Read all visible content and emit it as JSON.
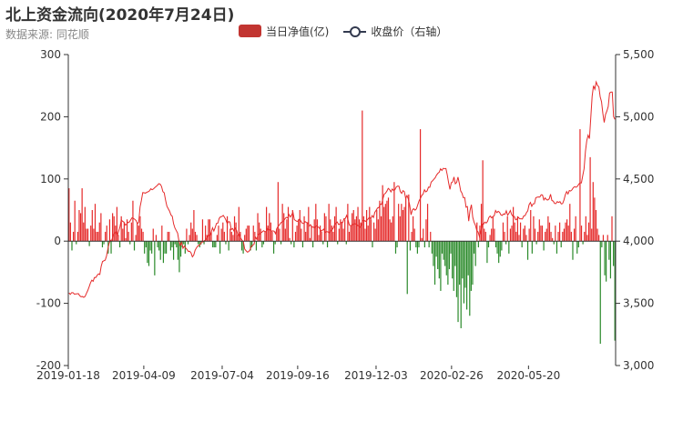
{
  "chart_data": {
    "type": "bar",
    "title": "北上资金流向(2020年7月24日)",
    "subtitle": "数据来源: 同花顺",
    "legend": {
      "position": "top-center",
      "entries": [
        "当日净值(亿)",
        "收盘价（右轴）"
      ]
    },
    "colors": {
      "positive": "#e52a2a",
      "negative": "#2a8a2a",
      "line": "#e52a2a",
      "legend_bar": "#c23531",
      "legend_line": "#333a4f",
      "axis": "#333333"
    },
    "x_tick_labels": [
      "2019-01-18",
      "2019-04-09",
      "2019-07-04",
      "2019-09-16",
      "2019-12-03",
      "2020-02-26",
      "2020-05-20"
    ],
    "x_tick_index": [
      0,
      52,
      106,
      158,
      212,
      264,
      317
    ],
    "y_left": {
      "ticks": [
        300,
        200,
        100,
        0,
        -100,
        -200
      ],
      "ylim": [
        -200,
        300
      ]
    },
    "y_right": {
      "ticks": [
        "5,500",
        "5,000",
        "4,500",
        "4,000",
        "3,500",
        "3,000"
      ],
      "ylim": [
        3000,
        5500
      ]
    },
    "grid": false,
    "series": [
      {
        "name": "当日净值(亿)",
        "type": "bar",
        "axis": "left",
        "values": [
          85,
          30,
          -15,
          15,
          65,
          -5,
          15,
          50,
          45,
          85,
          30,
          55,
          20,
          20,
          -8,
          25,
          50,
          20,
          60,
          15,
          15,
          30,
          45,
          -10,
          -5,
          15,
          25,
          -20,
          35,
          -20,
          45,
          40,
          25,
          55,
          10,
          -10,
          40,
          20,
          30,
          5,
          35,
          15,
          -5,
          30,
          65,
          -15,
          10,
          30,
          25,
          40,
          20,
          15,
          -20,
          -10,
          -35,
          -40,
          -15,
          -20,
          20,
          -55,
          10,
          -10,
          -15,
          -30,
          25,
          -35,
          -20,
          -20,
          15,
          15,
          -15,
          -10,
          -30,
          -5,
          -10,
          -30,
          -50,
          -25,
          -10,
          -5,
          -20,
          20,
          -5,
          10,
          30,
          20,
          50,
          15,
          10,
          -5,
          -10,
          -5,
          35,
          -5,
          25,
          10,
          35,
          35,
          15,
          -10,
          -10,
          -10,
          10,
          25,
          -20,
          20,
          30,
          15,
          -5,
          40,
          -15,
          20,
          15,
          10,
          40,
          30,
          10,
          55,
          15,
          -15,
          -20,
          10,
          20,
          25,
          25,
          -15,
          -10,
          25,
          15,
          -15,
          45,
          30,
          20,
          -10,
          -5,
          15,
          55,
          25,
          45,
          30,
          15,
          -20,
          -5,
          20,
          95,
          20,
          -5,
          60,
          45,
          20,
          35,
          55,
          5,
          -5,
          50,
          -10,
          15,
          25,
          35,
          50,
          20,
          -10,
          40,
          15,
          30,
          55,
          5,
          25,
          -10,
          35,
          60,
          35,
          10,
          25,
          15,
          -5,
          45,
          40,
          -10,
          60,
          35,
          25,
          15,
          40,
          55,
          -5,
          20,
          35,
          30,
          20,
          35,
          -5,
          60,
          15,
          25,
          45,
          50,
          35,
          40,
          55,
          35,
          30,
          210,
          40,
          20,
          50,
          25,
          55,
          35,
          -10,
          30,
          20,
          50,
          35,
          65,
          40,
          90,
          55,
          60,
          65,
          70,
          35,
          30,
          40,
          95,
          -20,
          -10,
          60,
          40,
          60,
          50,
          55,
          70,
          -85,
          75,
          -15,
          15,
          40,
          20,
          -10,
          -20,
          -10,
          180,
          5,
          20,
          -10,
          35,
          60,
          -10,
          15,
          -20,
          -40,
          -70,
          -25,
          -45,
          -60,
          -80,
          -20,
          -30,
          -40,
          -55,
          -70,
          -45,
          -20,
          -60,
          -80,
          -40,
          -90,
          -130,
          -70,
          -140,
          -60,
          -100,
          -75,
          -110,
          -55,
          -120,
          -80,
          -70,
          -20,
          -40,
          30,
          -10,
          25,
          60,
          130,
          20,
          15,
          -35,
          -10,
          10,
          20,
          40,
          20,
          -10,
          -20,
          -35,
          -25,
          -15,
          30,
          15,
          -5,
          40,
          -20,
          20,
          25,
          55,
          30,
          15,
          40,
          10,
          30,
          -10,
          20,
          25,
          10,
          -30,
          20,
          50,
          -20,
          40,
          20,
          -5,
          15,
          35,
          25,
          25,
          -15,
          15,
          20,
          40,
          30,
          15,
          5,
          -5,
          25,
          -20,
          15,
          30,
          -10,
          15,
          20,
          30,
          35,
          25,
          60,
          15,
          -30,
          20,
          40,
          -20,
          -10,
          180,
          25,
          -5,
          15,
          40,
          10,
          30,
          135,
          20,
          95,
          70,
          50,
          20,
          10,
          -165,
          -10,
          10,
          -55,
          -65,
          10,
          -30,
          -60,
          40,
          -40,
          -160
        ]
      },
      {
        "name": "收盘价（右轴）",
        "type": "line",
        "axis": "right",
        "values": [
          3584,
          3572,
          3586,
          3586,
          3574,
          3576,
          3577,
          3578,
          3562,
          3553,
          3555,
          3548,
          3555,
          3580,
          3603,
          3632,
          3664,
          3686,
          3677,
          3708,
          3707,
          3725,
          3737,
          3732,
          3797,
          3836,
          3842,
          3847,
          3881,
          3937,
          3986,
          4007,
          4008,
          4051,
          4066,
          4075,
          4045,
          4079,
          4115,
          4171,
          4159,
          4153,
          4129,
          4136,
          4152,
          4153,
          4171,
          4188,
          4183,
          4176,
          4166,
          4140,
          4153,
          4275,
          4328,
          4390,
          4389,
          4386,
          4393,
          4397,
          4404,
          4421,
          4413,
          4420,
          4431,
          4440,
          4450,
          4462,
          4458,
          4440,
          4398,
          4389,
          4330,
          4281,
          4261,
          4241,
          4211,
          4200,
          4139,
          4105,
          4085,
          4064,
          4000,
          3967,
          3990,
          3943,
          3961,
          3945,
          3933,
          3917,
          3919,
          3906,
          3874,
          3888,
          3926,
          3946,
          3960,
          3968,
          3975,
          3993,
          3994,
          4004,
          4011,
          4032,
          4050,
          4043,
          4069,
          4107,
          4081,
          4110,
          4143,
          4145,
          4183,
          4196,
          4198,
          4207,
          4191,
          4170,
          4140,
          4158,
          4153,
          4093,
          4102,
          4082,
          4104,
          4085,
          4046,
          4056,
          4025,
          4007,
          3998,
          3936,
          3923,
          3912,
          3916,
          3932,
          3960,
          3967,
          3976,
          4033,
          4016,
          4055,
          4055,
          4066,
          4074,
          4084,
          4078,
          4075,
          4103,
          4091,
          4091,
          4080,
          4083,
          4080,
          4060,
          4102,
          4120,
          4133,
          4148,
          4156,
          4163,
          4180,
          4191,
          4187,
          4214,
          4194,
          4212,
          4231,
          4173,
          4165,
          4158,
          4164,
          4180,
          4158,
          4143,
          4142,
          4157,
          4150,
          4148,
          4120,
          4133,
          4112,
          4114,
          4106,
          4121,
          4123,
          4111,
          4101,
          4080,
          4088,
          4097,
          4070,
          4076,
          4075,
          4067,
          4081,
          4090,
          4106,
          4131,
          4146,
          4154,
          4133,
          4138,
          4152,
          4149,
          4180,
          4182,
          4207,
          4172,
          4129,
          4125,
          4128,
          4137,
          4140,
          4138,
          4125,
          4125,
          4111,
          4127,
          4165,
          4167,
          4159,
          4167,
          4178,
          4193,
          4180,
          4206,
          4190,
          4232,
          4248,
          4266,
          4270,
          4297,
          4296,
          4340,
          4378,
          4386,
          4402,
          4424,
          4415,
          4396,
          4419,
          4407,
          4413,
          4436,
          4443,
          4441,
          4398,
          4384,
          4406,
          4398,
          4344,
          4367,
          4338,
          4290,
          4212,
          4251,
          4261,
          4249,
          4259,
          4292,
          4324,
          4344,
          4367,
          4379,
          4413,
          4396,
          4404,
          4434,
          4433,
          4475,
          4485,
          4497,
          4510,
          4531,
          4545,
          4554,
          4582,
          4568,
          4585,
          4583,
          4584,
          4533,
          4470,
          4416,
          4470,
          4476,
          4516,
          4461,
          4472,
          4515,
          4464,
          4404,
          4385,
          4349,
          4351,
          4273,
          4278,
          4161,
          4248,
          4293,
          4192,
          4152,
          4128,
          4086,
          4074,
          4036,
          4076,
          4137,
          4136,
          4153,
          4145,
          4158,
          4190,
          4202,
          4188,
          4197,
          4204,
          4246,
          4229,
          4240,
          4232,
          4211,
          4207,
          4219,
          4215,
          4244,
          4208,
          4224,
          4246,
          4214,
          4199,
          4199,
          4172,
          4177,
          4191,
          4180,
          4180,
          4178,
          4203,
          4205,
          4228,
          4243,
          4293,
          4311,
          4280,
          4300,
          4301,
          4349,
          4353,
          4355,
          4354,
          4373,
          4371,
          4331,
          4348,
          4333,
          4331,
          4340,
          4377,
          4327,
          4322,
          4303,
          4302,
          4318,
          4311,
          4318,
          4299,
          4302,
          4331,
          4372,
          4399,
          4379,
          4407,
          4403,
          4413,
          4430,
          4438,
          4433,
          4441,
          4457,
          4470,
          4468,
          4527,
          4582,
          4721,
          4808,
          4852,
          4824,
          4994,
          5163,
          5249,
          5221,
          5280,
          5252,
          5241,
          5160,
          5121,
          5026,
          4954,
          5019,
          5046,
          5082,
          5191,
          5198,
          5198,
          5001,
          4979
        ]
      }
    ]
  }
}
